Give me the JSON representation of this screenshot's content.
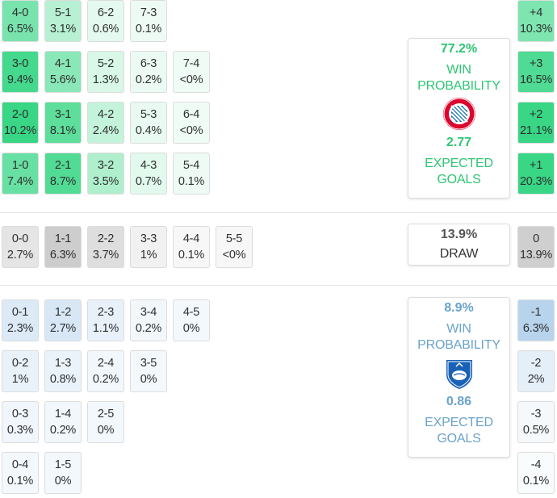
{
  "chart_data": {
    "type": "table",
    "home_scores": [
      [
        [
          "4-0",
          "6.5%"
        ],
        [
          "5-1",
          "3.1%"
        ],
        [
          "6-2",
          "0.6%"
        ],
        [
          "7-3",
          "0.1%"
        ]
      ],
      [
        [
          "3-0",
          "9.4%"
        ],
        [
          "4-1",
          "5.6%"
        ],
        [
          "5-2",
          "1.3%"
        ],
        [
          "6-3",
          "0.2%"
        ],
        [
          "7-4",
          "<0%"
        ]
      ],
      [
        [
          "2-0",
          "10.2%"
        ],
        [
          "3-1",
          "8.1%"
        ],
        [
          "4-2",
          "2.4%"
        ],
        [
          "5-3",
          "0.4%"
        ],
        [
          "6-4",
          "<0%"
        ]
      ],
      [
        [
          "1-0",
          "7.4%"
        ],
        [
          "2-1",
          "8.7%"
        ],
        [
          "3-2",
          "3.5%"
        ],
        [
          "4-3",
          "0.7%"
        ],
        [
          "5-4",
          "0.1%"
        ]
      ]
    ],
    "draw_scores": [
      [
        "0-0",
        "2.7%"
      ],
      [
        "1-1",
        "6.3%"
      ],
      [
        "2-2",
        "3.7%"
      ],
      [
        "3-3",
        "1%"
      ],
      [
        "4-4",
        "0.1%"
      ],
      [
        "5-5",
        "<0%"
      ]
    ],
    "away_scores": [
      [
        [
          "0-1",
          "2.3%"
        ],
        [
          "1-2",
          "2.7%"
        ],
        [
          "2-3",
          "1.1%"
        ],
        [
          "3-4",
          "0.2%"
        ],
        [
          "4-5",
          "0%"
        ]
      ],
      [
        [
          "0-2",
          "1%"
        ],
        [
          "1-3",
          "0.8%"
        ],
        [
          "2-4",
          "0.2%"
        ],
        [
          "3-5",
          "0%"
        ]
      ],
      [
        [
          "0-3",
          "0.3%"
        ],
        [
          "1-4",
          "0.2%"
        ],
        [
          "2-5",
          "0%"
        ]
      ],
      [
        [
          "0-4",
          "0.1%"
        ],
        [
          "1-5",
          "0%"
        ]
      ]
    ],
    "goal_diff": [
      [
        "+4",
        "10.3%"
      ],
      [
        "+3",
        "16.5%"
      ],
      [
        "+2",
        "21.1%"
      ],
      [
        "+1",
        "20.3%"
      ],
      [
        "0",
        "13.9%"
      ],
      [
        "-1",
        "6.3%"
      ],
      [
        "-2",
        "2%"
      ],
      [
        "-3",
        "0.5%"
      ],
      [
        "-4",
        "0.1%"
      ]
    ],
    "home": {
      "win_pct": "77.2%",
      "win_label": [
        "WIN",
        "PROBABILITY"
      ],
      "xg": "2.77",
      "xg_label": [
        "EXPECTED",
        "GOALS"
      ],
      "color": "#2ec673"
    },
    "draw": {
      "pct": "13.9%",
      "label": "DRAW"
    },
    "away": {
      "win_pct": "8.9%",
      "win_label": [
        "WIN",
        "PROBABILITY"
      ],
      "xg": "0.86",
      "xg_label": [
        "EXPECTED",
        "GOALS"
      ],
      "color": "#6aa3cc"
    },
    "crests": {
      "home": "bayern-crest-icon",
      "away": "hoffenheim-crest-icon"
    }
  }
}
